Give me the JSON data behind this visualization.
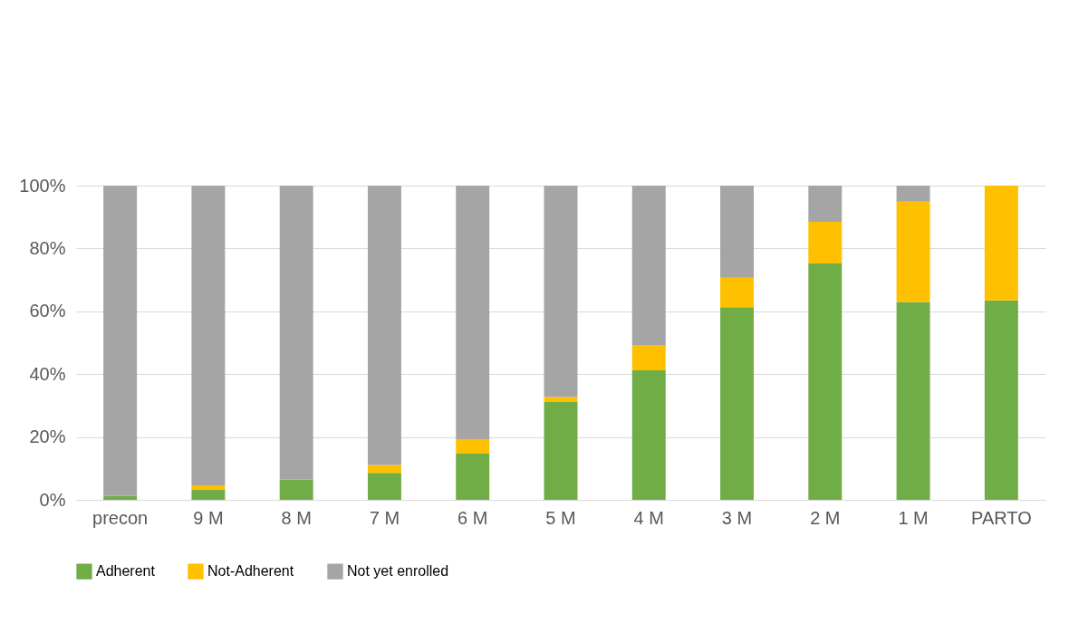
{
  "chart_data": {
    "type": "bar",
    "stacked": true,
    "categories": [
      "precon",
      "9 M",
      "8 M",
      "7 M",
      "6 M",
      "5 M",
      "4 M",
      "3 M",
      "2 M",
      "1 M",
      "PARTO"
    ],
    "series": [
      {
        "name": "Adherent",
        "color": "#70ad47",
        "values": [
          1.2,
          3.3,
          6.4,
          8.6,
          14.7,
          31.1,
          41.2,
          61.3,
          75.2,
          63.0,
          63.5
        ]
      },
      {
        "name": "Not-Adherent",
        "color": "#ffc000",
        "values": [
          0,
          1.3,
          0,
          2.5,
          4.6,
          1.6,
          8.1,
          9.4,
          13.3,
          31.9,
          36.5
        ]
      },
      {
        "name": "Not yet enrolled",
        "color": "#a5a5a5",
        "values": [
          98.8,
          95.4,
          93.6,
          88.9,
          80.7,
          67.3,
          50.7,
          29.3,
          11.5,
          5.1,
          0
        ]
      }
    ],
    "ylim": [
      0,
      100
    ],
    "yticks": [
      {
        "value": 0,
        "label": "0%"
      },
      {
        "value": 20,
        "label": "20%"
      },
      {
        "value": 40,
        "label": "40%"
      },
      {
        "value": 60,
        "label": "60%"
      },
      {
        "value": 80,
        "label": "80%"
      },
      {
        "value": 100,
        "label": "100%"
      }
    ],
    "grid": "y",
    "legend": "bottom"
  }
}
